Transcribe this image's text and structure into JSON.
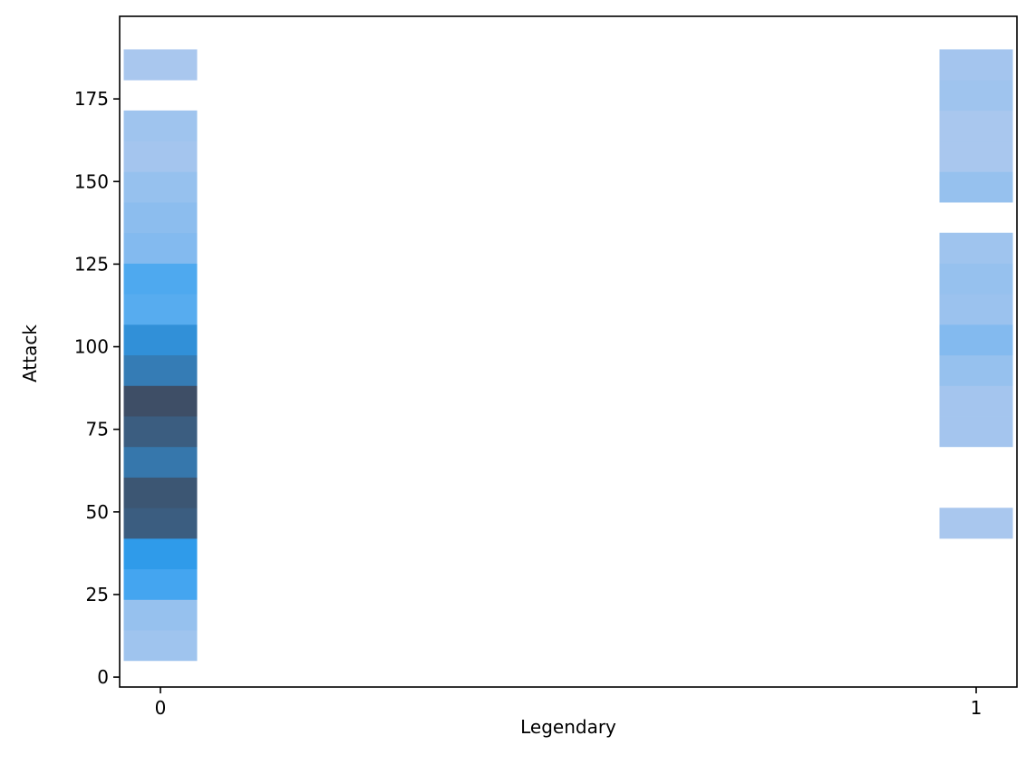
{
  "chart_data": {
    "type": "heatmap",
    "title": "",
    "xlabel": "Legendary",
    "ylabel": "Attack",
    "x_ticks": [
      0,
      1
    ],
    "x_tick_labels": [
      "0",
      "1"
    ],
    "y_ticks": [
      0,
      25,
      50,
      75,
      100,
      125,
      150,
      175
    ],
    "y_tick_labels": [
      "0",
      "25",
      "50",
      "75",
      "100",
      "125",
      "150",
      "175"
    ],
    "xlim": [
      -0.05,
      1.05
    ],
    "ylim": [
      -3,
      200
    ],
    "bin_width": 9.25,
    "bar_halfwidth": 0.045,
    "grid": false,
    "color_scale": {
      "light": "#a9c7ee",
      "mid": "#2e9ef0",
      "dark": "#3e4e66"
    },
    "columns": [
      {
        "x": 0,
        "bins": [
          {
            "y0": 5,
            "y1": 14.25,
            "count": 3
          },
          {
            "y0": 14.25,
            "y1": 23.5,
            "count": 5
          },
          {
            "y0": 23.5,
            "y1": 32.75,
            "count": 22
          },
          {
            "y0": 32.75,
            "y1": 42,
            "count": 28
          },
          {
            "y0": 42,
            "y1": 51.25,
            "count": 52
          },
          {
            "y0": 51.25,
            "y1": 60.5,
            "count": 55
          },
          {
            "y0": 60.5,
            "y1": 69.75,
            "count": 42
          },
          {
            "y0": 69.75,
            "y1": 79,
            "count": 52
          },
          {
            "y0": 79,
            "y1": 88.25,
            "count": 58
          },
          {
            "y0": 88.25,
            "y1": 97.5,
            "count": 40
          },
          {
            "y0": 97.5,
            "y1": 106.75,
            "count": 32
          },
          {
            "y0": 106.75,
            "y1": 116,
            "count": 18
          },
          {
            "y0": 116,
            "y1": 125.25,
            "count": 20
          },
          {
            "y0": 125.25,
            "y1": 134.5,
            "count": 9
          },
          {
            "y0": 134.5,
            "y1": 143.75,
            "count": 7
          },
          {
            "y0": 143.75,
            "y1": 153,
            "count": 5
          },
          {
            "y0": 153,
            "y1": 162.25,
            "count": 2
          },
          {
            "y0": 162.25,
            "y1": 171.5,
            "count": 3
          },
          {
            "y0": 180.75,
            "y1": 190,
            "count": 1
          }
        ]
      },
      {
        "x": 1,
        "bins": [
          {
            "y0": 42,
            "y1": 51.25,
            "count": 1
          },
          {
            "y0": 69.75,
            "y1": 79,
            "count": 2
          },
          {
            "y0": 79,
            "y1": 88.25,
            "count": 2
          },
          {
            "y0": 88.25,
            "y1": 97.5,
            "count": 5
          },
          {
            "y0": 97.5,
            "y1": 106.75,
            "count": 9
          },
          {
            "y0": 106.75,
            "y1": 116,
            "count": 4
          },
          {
            "y0": 116,
            "y1": 125.25,
            "count": 5
          },
          {
            "y0": 125.25,
            "y1": 134.5,
            "count": 3
          },
          {
            "y0": 143.75,
            "y1": 153,
            "count": 5
          },
          {
            "y0": 153,
            "y1": 162.25,
            "count": 1
          },
          {
            "y0": 162.25,
            "y1": 171.5,
            "count": 1
          },
          {
            "y0": 171.5,
            "y1": 180.75,
            "count": 3
          },
          {
            "y0": 180.75,
            "y1": 190,
            "count": 2
          }
        ]
      }
    ]
  }
}
